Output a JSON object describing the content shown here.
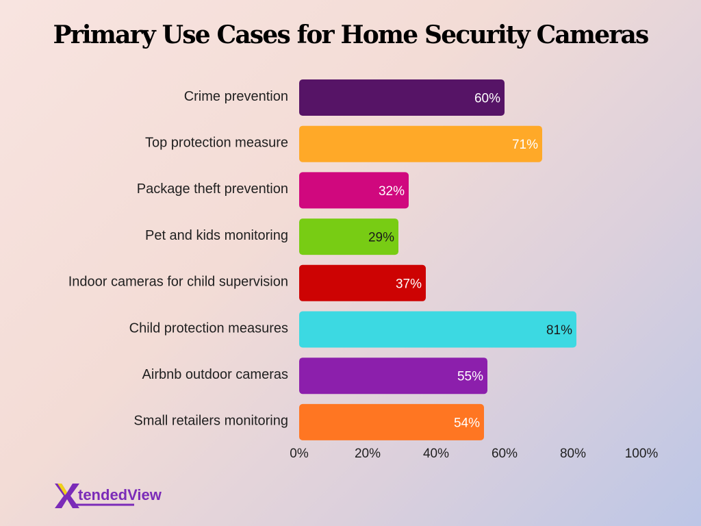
{
  "title": "Primary Use Cases for Home Security Cameras",
  "logo": {
    "text": "tendedView",
    "mark": "X"
  },
  "chart_data": {
    "type": "bar",
    "orientation": "horizontal",
    "title": "Primary Use Cases for Home Security Cameras",
    "xlabel": "",
    "ylabel": "",
    "xlim": [
      0,
      100
    ],
    "x_ticks": [
      "0%",
      "20%",
      "40%",
      "60%",
      "80%",
      "100%"
    ],
    "grid": false,
    "legend": "none",
    "categories": [
      "Crime prevention",
      "Top protection measure",
      "Package theft prevention",
      "Pet and kids monitoring",
      "Indoor cameras for child supervision",
      "Child protection measures",
      "Airbnb outdoor cameras",
      "Small retailers monitoring"
    ],
    "values": [
      60,
      71,
      32,
      29,
      37,
      81,
      55,
      54
    ],
    "value_labels": [
      "60%",
      "71%",
      "32%",
      "29%",
      "37%",
      "81%",
      "55%",
      "54%"
    ],
    "colors": [
      "#561466",
      "#ffa928",
      "#d0087e",
      "#78cc14",
      "#cd0303",
      "#3cd9e2",
      "#8c1fac",
      "#ff7622"
    ],
    "label_colors": [
      "#ffffff",
      "#ffffff",
      "#ffffff",
      "#1a1a1a",
      "#ffffff",
      "#1a1a1a",
      "#ffffff",
      "#ffffff"
    ]
  }
}
